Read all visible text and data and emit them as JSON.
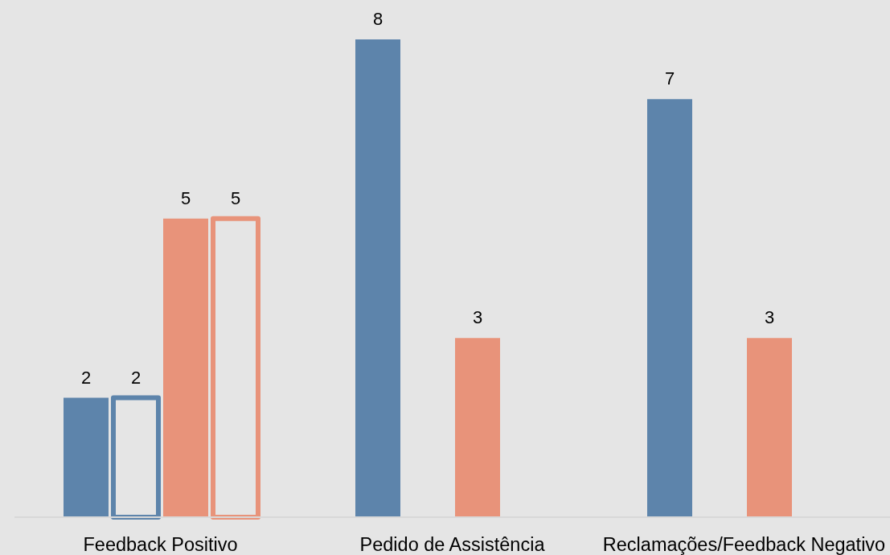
{
  "chart_data": {
    "type": "bar",
    "categories": [
      "Feedback Positivo",
      "Pedido de Assistência",
      "Reclamações/Feedback Negativo"
    ],
    "series": [
      {
        "color": "#5d84ab",
        "values": [
          2,
          8,
          7
        ]
      },
      {
        "color": "#5d84ab",
        "values": [
          2,
          null,
          null
        ],
        "line_style": "solid"
      },
      {
        "color": "#e8937a",
        "values": [
          5,
          3,
          3
        ]
      },
      {
        "color": "#e8937a",
        "values": [
          5,
          null,
          null
        ],
        "line_style": "solid"
      }
    ],
    "data_labels": true,
    "tick_labels": "x"
  }
}
